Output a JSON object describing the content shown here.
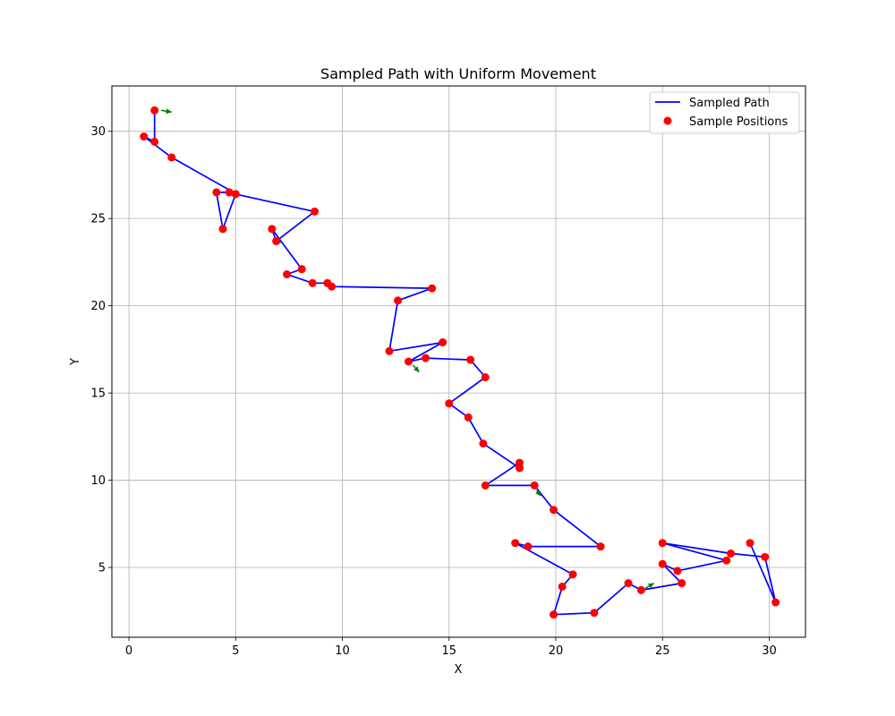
{
  "chart_data": {
    "type": "line",
    "title": "Sampled Path with Uniform Movement",
    "xlabel": "X",
    "ylabel": "Y",
    "xlim": [
      -0.8,
      31.7
    ],
    "ylim": [
      1.0,
      32.6
    ],
    "xticks": [
      0,
      5,
      10,
      15,
      20,
      25,
      30
    ],
    "yticks": [
      5,
      10,
      15,
      20,
      25,
      30
    ],
    "grid": true,
    "legend_position": "top-right",
    "colors": {
      "path": "#0000ff",
      "points": "#ff0000",
      "arrows": "#008000",
      "grid": "#b0b0b0"
    },
    "series": [
      {
        "name": "Sampled Path",
        "kind": "line",
        "points": [
          [
            1.2,
            31.2
          ],
          [
            1.2,
            29.4
          ],
          [
            0.7,
            29.7
          ],
          [
            2.0,
            28.5
          ],
          [
            4.9,
            26.5
          ],
          [
            4.1,
            26.5
          ],
          [
            4.4,
            24.4
          ],
          [
            5.0,
            26.4
          ],
          [
            8.7,
            25.4
          ],
          [
            6.9,
            23.7
          ],
          [
            6.7,
            24.4
          ],
          [
            8.1,
            22.1
          ],
          [
            7.4,
            21.8
          ],
          [
            8.6,
            21.3
          ],
          [
            9.3,
            21.3
          ],
          [
            9.5,
            21.1
          ],
          [
            14.2,
            21.0
          ],
          [
            12.6,
            20.3
          ],
          [
            12.2,
            17.4
          ],
          [
            14.7,
            17.9
          ],
          [
            13.1,
            16.8
          ],
          [
            13.9,
            17.0
          ],
          [
            16.0,
            16.9
          ],
          [
            16.7,
            15.9
          ],
          [
            16.7,
            15.9
          ],
          [
            15.0,
            14.4
          ],
          [
            15.9,
            13.6
          ],
          [
            16.6,
            12.1
          ],
          [
            18.3,
            10.7
          ],
          [
            18.3,
            11.0
          ],
          [
            16.7,
            9.7
          ],
          [
            19.0,
            9.7
          ],
          [
            19.9,
            8.3
          ],
          [
            22.1,
            6.2
          ],
          [
            18.7,
            6.2
          ],
          [
            18.1,
            6.4
          ],
          [
            20.8,
            4.6
          ],
          [
            20.3,
            3.9
          ],
          [
            19.9,
            2.3
          ],
          [
            21.8,
            2.4
          ],
          [
            23.4,
            4.1
          ],
          [
            24.0,
            3.7
          ],
          [
            25.9,
            4.1
          ],
          [
            25.0,
            5.2
          ],
          [
            25.7,
            4.8
          ],
          [
            28.0,
            5.4
          ],
          [
            25.0,
            6.4
          ],
          [
            28.2,
            5.8
          ],
          [
            29.8,
            5.6
          ],
          [
            30.3,
            3.0
          ],
          [
            29.1,
            6.4
          ]
        ]
      },
      {
        "name": "Sample Positions",
        "kind": "scatter",
        "points": [
          [
            1.2,
            31.2
          ],
          [
            0.7,
            29.7
          ],
          [
            1.2,
            29.4
          ],
          [
            2.0,
            28.5
          ],
          [
            4.1,
            26.5
          ],
          [
            4.7,
            26.5
          ],
          [
            5.0,
            26.4
          ],
          [
            4.4,
            24.4
          ],
          [
            8.7,
            25.4
          ],
          [
            6.7,
            24.4
          ],
          [
            6.9,
            23.7
          ],
          [
            8.1,
            22.1
          ],
          [
            7.4,
            21.8
          ],
          [
            8.6,
            21.3
          ],
          [
            9.3,
            21.3
          ],
          [
            9.5,
            21.1
          ],
          [
            14.2,
            21.0
          ],
          [
            12.6,
            20.3
          ],
          [
            14.7,
            17.9
          ],
          [
            12.2,
            17.4
          ],
          [
            13.1,
            16.8
          ],
          [
            13.9,
            17.0
          ],
          [
            16.0,
            16.9
          ],
          [
            16.7,
            15.9
          ],
          [
            15.0,
            14.4
          ],
          [
            15.9,
            13.6
          ],
          [
            16.6,
            12.1
          ],
          [
            18.3,
            11.0
          ],
          [
            18.3,
            10.7
          ],
          [
            16.7,
            9.7
          ],
          [
            19.0,
            9.7
          ],
          [
            19.9,
            8.3
          ],
          [
            18.1,
            6.4
          ],
          [
            18.7,
            6.2
          ],
          [
            22.1,
            6.2
          ],
          [
            20.8,
            4.6
          ],
          [
            20.3,
            3.9
          ],
          [
            19.9,
            2.3
          ],
          [
            21.8,
            2.4
          ],
          [
            23.4,
            4.1
          ],
          [
            24.0,
            3.7
          ],
          [
            25.0,
            6.4
          ],
          [
            25.0,
            5.2
          ],
          [
            25.7,
            4.8
          ],
          [
            25.9,
            4.1
          ],
          [
            28.0,
            5.4
          ],
          [
            28.2,
            5.8
          ],
          [
            29.1,
            6.4
          ],
          [
            29.8,
            5.6
          ],
          [
            30.3,
            3.0
          ]
        ]
      }
    ],
    "arrows": [
      {
        "from": [
          1.5,
          31.2
        ],
        "to": [
          2.0,
          31.1
        ]
      },
      {
        "from": [
          6.9,
          23.9
        ],
        "to": [
          7.1,
          23.6
        ]
      },
      {
        "from": [
          13.3,
          16.6
        ],
        "to": [
          13.6,
          16.2
        ]
      },
      {
        "from": [
          19.1,
          9.4
        ],
        "to": [
          19.3,
          9.1
        ]
      },
      {
        "from": [
          24.2,
          3.8
        ],
        "to": [
          24.6,
          4.1
        ]
      }
    ],
    "legend": [
      "Sampled Path",
      "Sample Positions"
    ]
  }
}
